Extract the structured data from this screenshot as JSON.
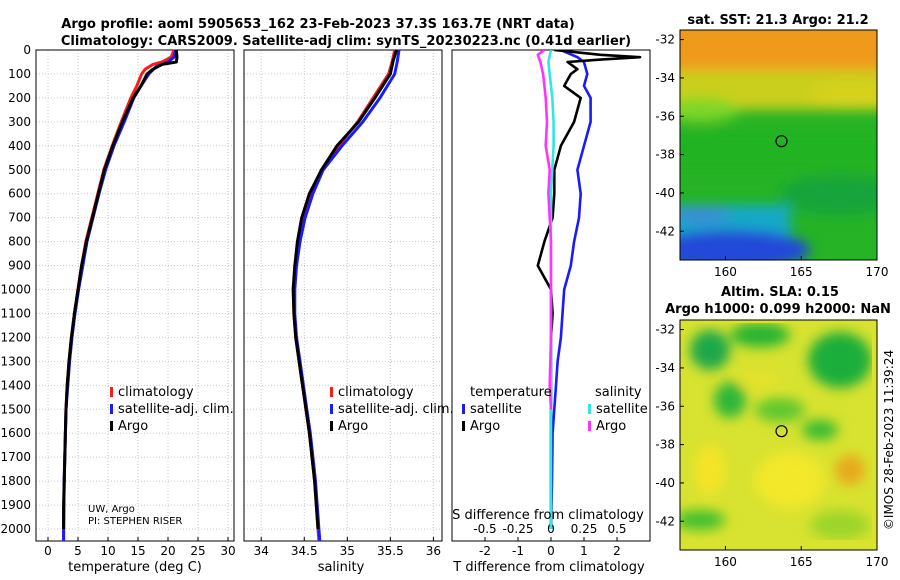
{
  "header": {
    "line1": "Argo profile: aoml 5905653_162 23-Feb-2023 37.3S 163.7E (NRT data)",
    "line2": "Climatology: CARS2009. Satellite-adj clim: synTS_20230223.nc (0.41d earlier)"
  },
  "colors": {
    "climatology": "#ff1a1a",
    "satellite": "#1a1aff",
    "argo": "#000000",
    "argo_sal": "#ff33ff",
    "sat_sal": "#33e6e6"
  },
  "chart_data": [
    {
      "type": "line",
      "name": "temperature",
      "xlabel": "temperature (deg C)",
      "ylabel": "",
      "xlim": [
        -2,
        31
      ],
      "ylim": [
        2050,
        0
      ],
      "xticks": [
        0,
        5,
        10,
        15,
        20,
        25,
        30
      ],
      "yticks": [
        0,
        100,
        200,
        300,
        400,
        500,
        600,
        700,
        800,
        900,
        1000,
        1100,
        1200,
        1300,
        1400,
        1500,
        1600,
        1700,
        1800,
        1900,
        2000
      ],
      "grid": true,
      "legend": [
        "climatology",
        "satellite-adj. clim.",
        "Argo"
      ],
      "credits": [
        "UW, Argo",
        "PI: STEPHEN RISER"
      ],
      "series": [
        {
          "name": "climatology",
          "depth": [
            0,
            30,
            50,
            60,
            80,
            100,
            150,
            200,
            300,
            400,
            500,
            600,
            700,
            800,
            900,
            1000,
            1100,
            1200,
            1300,
            1400,
            1500,
            1600,
            1800,
            2000,
            2050
          ],
          "values": [
            21.0,
            20.5,
            19.0,
            17.5,
            16.2,
            15.6,
            14.8,
            13.8,
            12.2,
            10.7,
            9.3,
            8.3,
            7.3,
            6.3,
            5.6,
            5.0,
            4.4,
            3.9,
            3.5,
            3.2,
            3.0,
            2.9,
            2.7,
            2.6,
            2.6
          ]
        },
        {
          "name": "satellite-adj. clim.",
          "depth": [
            0,
            30,
            50,
            70,
            100,
            150,
            200,
            300,
            400,
            500,
            600,
            700,
            800,
            900,
            1000,
            1100,
            1200,
            1300,
            1400,
            1500,
            1600,
            1800,
            2000,
            2050
          ],
          "values": [
            21.3,
            21.0,
            20.0,
            18.0,
            16.8,
            15.5,
            14.3,
            12.7,
            11.0,
            9.6,
            8.5,
            7.5,
            6.5,
            5.8,
            5.1,
            4.5,
            4.0,
            3.6,
            3.3,
            3.0,
            2.9,
            2.7,
            2.6,
            2.6
          ]
        },
        {
          "name": "Argo",
          "depth": [
            0,
            5,
            30,
            50,
            60,
            80,
            100,
            150,
            200,
            300,
            400,
            500,
            600,
            700,
            800,
            900,
            1000,
            1100,
            1200,
            1300,
            1400,
            1500,
            1600,
            1700,
            1800,
            1900,
            2000
          ],
          "values": [
            21.2,
            21.4,
            21.5,
            21.4,
            19.0,
            17.5,
            16.5,
            15.5,
            14.2,
            12.4,
            10.8,
            9.4,
            8.4,
            7.4,
            6.4,
            5.6,
            5.0,
            4.4,
            3.9,
            3.5,
            3.2,
            3.0,
            2.9,
            2.8,
            2.7,
            2.6,
            2.6
          ]
        }
      ]
    },
    {
      "type": "line",
      "name": "salinity",
      "xlabel": "salinity",
      "xlim": [
        33.8,
        36.1
      ],
      "ylim": [
        2050,
        0
      ],
      "xticks": [
        34,
        34.5,
        35,
        35.5,
        36
      ],
      "grid": true,
      "legend": [
        "climatology",
        "satellite-adj. clim.",
        "Argo"
      ],
      "series": [
        {
          "name": "climatology",
          "depth": [
            0,
            50,
            100,
            200,
            300,
            400,
            500,
            600,
            700,
            800,
            900,
            1000,
            1100,
            1200,
            1300,
            1400,
            1500,
            1600,
            1800,
            2000,
            2050
          ],
          "values": [
            35.55,
            35.52,
            35.48,
            35.3,
            35.12,
            34.9,
            34.7,
            34.58,
            34.49,
            34.44,
            34.4,
            34.38,
            34.38,
            34.4,
            34.44,
            34.48,
            34.52,
            34.56,
            34.62,
            34.66,
            34.67
          ]
        },
        {
          "name": "satellite-adj. clim.",
          "depth": [
            0,
            50,
            100,
            200,
            300,
            400,
            500,
            600,
            700,
            800,
            900,
            1000,
            1100,
            1200,
            1300,
            1400,
            1500,
            1600,
            1800,
            2000,
            2050
          ],
          "values": [
            35.6,
            35.58,
            35.55,
            35.38,
            35.18,
            34.94,
            34.72,
            34.6,
            34.51,
            34.45,
            34.41,
            34.39,
            34.39,
            34.41,
            34.45,
            34.49,
            34.53,
            34.57,
            34.63,
            34.67,
            34.68
          ]
        },
        {
          "name": "Argo",
          "depth": [
            0,
            50,
            100,
            200,
            300,
            400,
            500,
            600,
            700,
            800,
            900,
            1000,
            1100,
            1200,
            1300,
            1400,
            1500,
            1600,
            1700,
            1800,
            1900,
            2000
          ],
          "values": [
            35.57,
            35.53,
            35.5,
            35.32,
            35.13,
            34.88,
            34.7,
            34.56,
            34.47,
            34.42,
            34.39,
            34.37,
            34.38,
            34.4,
            34.44,
            34.48,
            34.52,
            34.56,
            34.59,
            34.62,
            34.64,
            34.66
          ]
        }
      ]
    },
    {
      "type": "line",
      "name": "differences",
      "xlabel": "T difference from climatology",
      "xlabel_top": "S difference from climatology",
      "xlim": [
        -3,
        3
      ],
      "ylim": [
        2050,
        0
      ],
      "xticks": [
        -2,
        -1,
        0,
        1,
        2
      ],
      "xticks_s": [
        "-0.5",
        "-0.25",
        "0",
        "0.25",
        "0.5"
      ],
      "grid": false,
      "legend_titles": [
        "temperature",
        "salinity"
      ],
      "legend_t": [
        "satellite",
        "Argo"
      ],
      "legend_s": [
        "satellite",
        "Argo"
      ],
      "series": [
        {
          "name": "T satellite",
          "depth": [
            0,
            30,
            50,
            100,
            150,
            200,
            300,
            400,
            500,
            600,
            700,
            800,
            900,
            1000,
            1100,
            1200,
            1300,
            1400,
            1500,
            1600,
            1800,
            2000
          ],
          "values": [
            0.3,
            0.8,
            1.0,
            1.1,
            1.0,
            1.2,
            1.2,
            1.0,
            0.8,
            0.9,
            0.85,
            0.7,
            0.6,
            0.4,
            0.35,
            0.3,
            0.2,
            0.15,
            0.1,
            0.05,
            0.03,
            0.0
          ]
        },
        {
          "name": "T Argo",
          "depth": [
            0,
            20,
            30,
            40,
            50,
            80,
            100,
            150,
            200,
            300,
            400,
            500,
            600,
            700,
            800,
            900,
            1000,
            1100,
            1200,
            1300,
            1400,
            1500,
            1600,
            1800,
            2000
          ],
          "values": [
            0.1,
            1.5,
            2.7,
            1.5,
            0.5,
            0.8,
            0.6,
            0.4,
            0.9,
            0.7,
            0.3,
            0.1,
            0.1,
            0.05,
            -0.2,
            -0.4,
            0.0,
            0.05,
            0.0,
            0.0,
            0.0,
            0.0,
            0.0,
            0.0,
            0.0
          ]
        },
        {
          "name": "S satellite",
          "depth": [
            0,
            50,
            100,
            200,
            300,
            400,
            500,
            600,
            800,
            1000,
            1200,
            1400,
            1600,
            1800,
            2000
          ],
          "values": [
            0.0,
            -0.02,
            -0.01,
            0.01,
            0.02,
            0.02,
            0.01,
            0.0,
            0.0,
            0.0,
            0.0,
            0.0,
            0.0,
            0.0,
            0.0
          ]
        },
        {
          "name": "S Argo",
          "depth": [
            0,
            20,
            50,
            100,
            150,
            200,
            300,
            400,
            500,
            600,
            800,
            1000,
            1200,
            1400,
            1500
          ],
          "values": [
            -0.05,
            -0.1,
            -0.08,
            -0.06,
            -0.05,
            -0.04,
            -0.03,
            -0.04,
            -0.01,
            -0.02,
            0.0,
            0.0,
            0.0,
            -0.01,
            0.0
          ]
        }
      ]
    },
    {
      "type": "heatmap",
      "name": "sst-map",
      "title": "sat. SST: 21.3 Argo: 21.2",
      "xlim": [
        157,
        170
      ],
      "ylim": [
        -43.5,
        -31.5
      ],
      "xticks": [
        160,
        165,
        170
      ],
      "yticks": [
        -32,
        -34,
        -36,
        -38,
        -40,
        -42
      ],
      "marker": [
        163.7,
        -37.3
      ]
    },
    {
      "type": "heatmap",
      "name": "sla-map",
      "title": "Altim. SLA: 0.15",
      "subtitle": "Argo h1000: 0.099 h2000: NaN",
      "xlim": [
        157,
        170
      ],
      "ylim": [
        -43.5,
        -31.5
      ],
      "xticks": [
        160,
        165,
        170
      ],
      "yticks": [
        -32,
        -34,
        -36,
        -38,
        -40,
        -42
      ],
      "marker": [
        163.7,
        -37.3
      ]
    }
  ],
  "footer": {
    "credit": "©IMOS 28-Feb-2023 11:39:24"
  }
}
